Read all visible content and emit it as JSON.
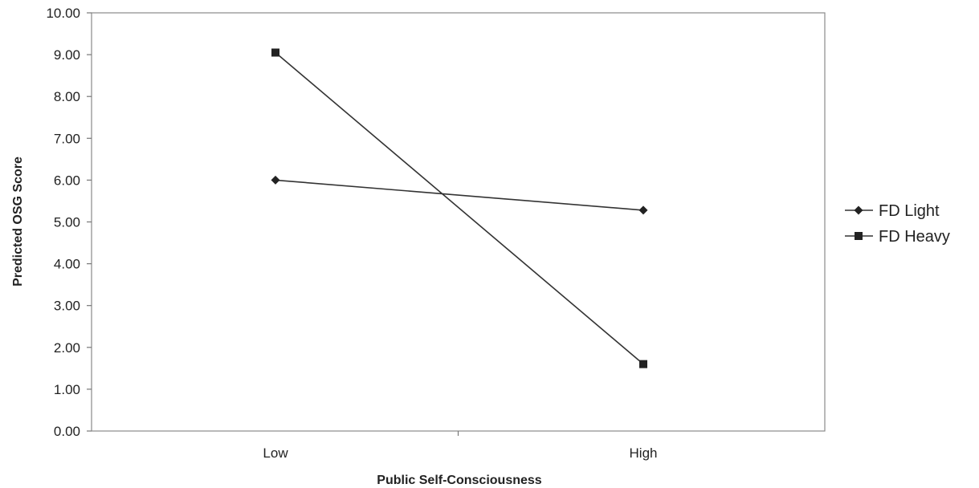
{
  "chart_data": {
    "type": "line",
    "title": "",
    "xlabel": "Public Self-Consciousness",
    "ylabel": "Predicted OSG Score",
    "categories": [
      "Low",
      "High"
    ],
    "ylim": [
      0,
      10
    ],
    "yticks": [
      "0.00",
      "1.00",
      "2.00",
      "3.00",
      "4.00",
      "5.00",
      "6.00",
      "7.00",
      "8.00",
      "9.00",
      "10.00"
    ],
    "grid": false,
    "legend_position": "right",
    "series": [
      {
        "name": "FD Light",
        "marker": "diamond",
        "values": [
          6.0,
          5.28
        ]
      },
      {
        "name": "FD Heavy",
        "marker": "square",
        "values": [
          9.05,
          1.6
        ]
      }
    ],
    "colors": {
      "line": "#333333",
      "axis": "#777777",
      "marker": "#222222"
    }
  }
}
